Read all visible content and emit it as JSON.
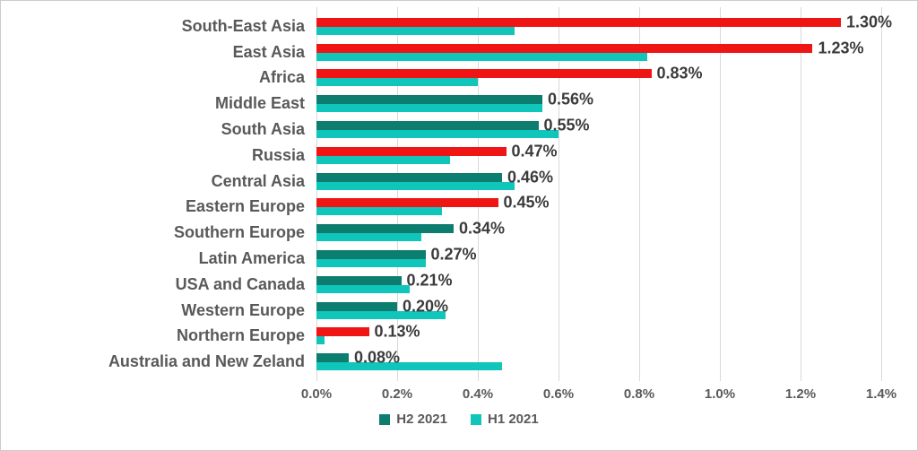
{
  "chart_data": {
    "type": "bar",
    "orientation": "horizontal",
    "title": "",
    "xlabel": "",
    "ylabel": "",
    "xlim": [
      0,
      1.4
    ],
    "x_tick_labels": [
      "0.0%",
      "0.2%",
      "0.4%",
      "0.6%",
      "0.8%",
      "1.0%",
      "1.2%",
      "1.4%"
    ],
    "grid": true,
    "legend_position": "bottom",
    "categories": [
      "South-East Asia",
      "East Asia",
      "Africa",
      "Middle East",
      "South Asia",
      "Russia",
      "Central Asia",
      "Eastern Europe",
      "Southern Europe",
      "Latin America",
      "USA and Canada",
      "Western Europe",
      "Northern Europe",
      "Australia and New Zeland"
    ],
    "series": [
      {
        "name": "H2 2021",
        "values": [
          1.3,
          1.23,
          0.83,
          0.56,
          0.55,
          0.47,
          0.46,
          0.45,
          0.34,
          0.27,
          0.21,
          0.2,
          0.13,
          0.08
        ],
        "data_labels": [
          "1.30%",
          "1.23%",
          "0.83%",
          "0.56%",
          "0.55%",
          "0.47%",
          "0.46%",
          "0.45%",
          "0.34%",
          "0.27%",
          "0.21%",
          "0.20%",
          "0.13%",
          "0.08%"
        ],
        "default_color": "#0C7D6F",
        "highlight_color": "#EF1515",
        "bar_colors": [
          "#EF1515",
          "#EF1515",
          "#EF1515",
          "#0C7D6F",
          "#0C7D6F",
          "#EF1515",
          "#0C7D6F",
          "#EF1515",
          "#0C7D6F",
          "#0C7D6F",
          "#0C7D6F",
          "#0C7D6F",
          "#EF1515",
          "#0C7D6F"
        ]
      },
      {
        "name": "H1 2021",
        "values": [
          0.49,
          0.82,
          0.4,
          0.56,
          0.6,
          0.33,
          0.49,
          0.31,
          0.26,
          0.27,
          0.23,
          0.32,
          0.02,
          0.46
        ],
        "color": "#10C5B9"
      }
    ]
  },
  "legend": {
    "items": [
      {
        "label": "H2 2021",
        "color": "#0C7D6F"
      },
      {
        "label": "H1 2021",
        "color": "#10C5B9"
      }
    ]
  },
  "style_colors": {
    "category_label": "#595959",
    "value_label": "#3B3B3B",
    "axis_label": "#595959",
    "gridline": "#D9D9D9",
    "border": "#CCCCCC",
    "background": "#FFFFFF"
  }
}
